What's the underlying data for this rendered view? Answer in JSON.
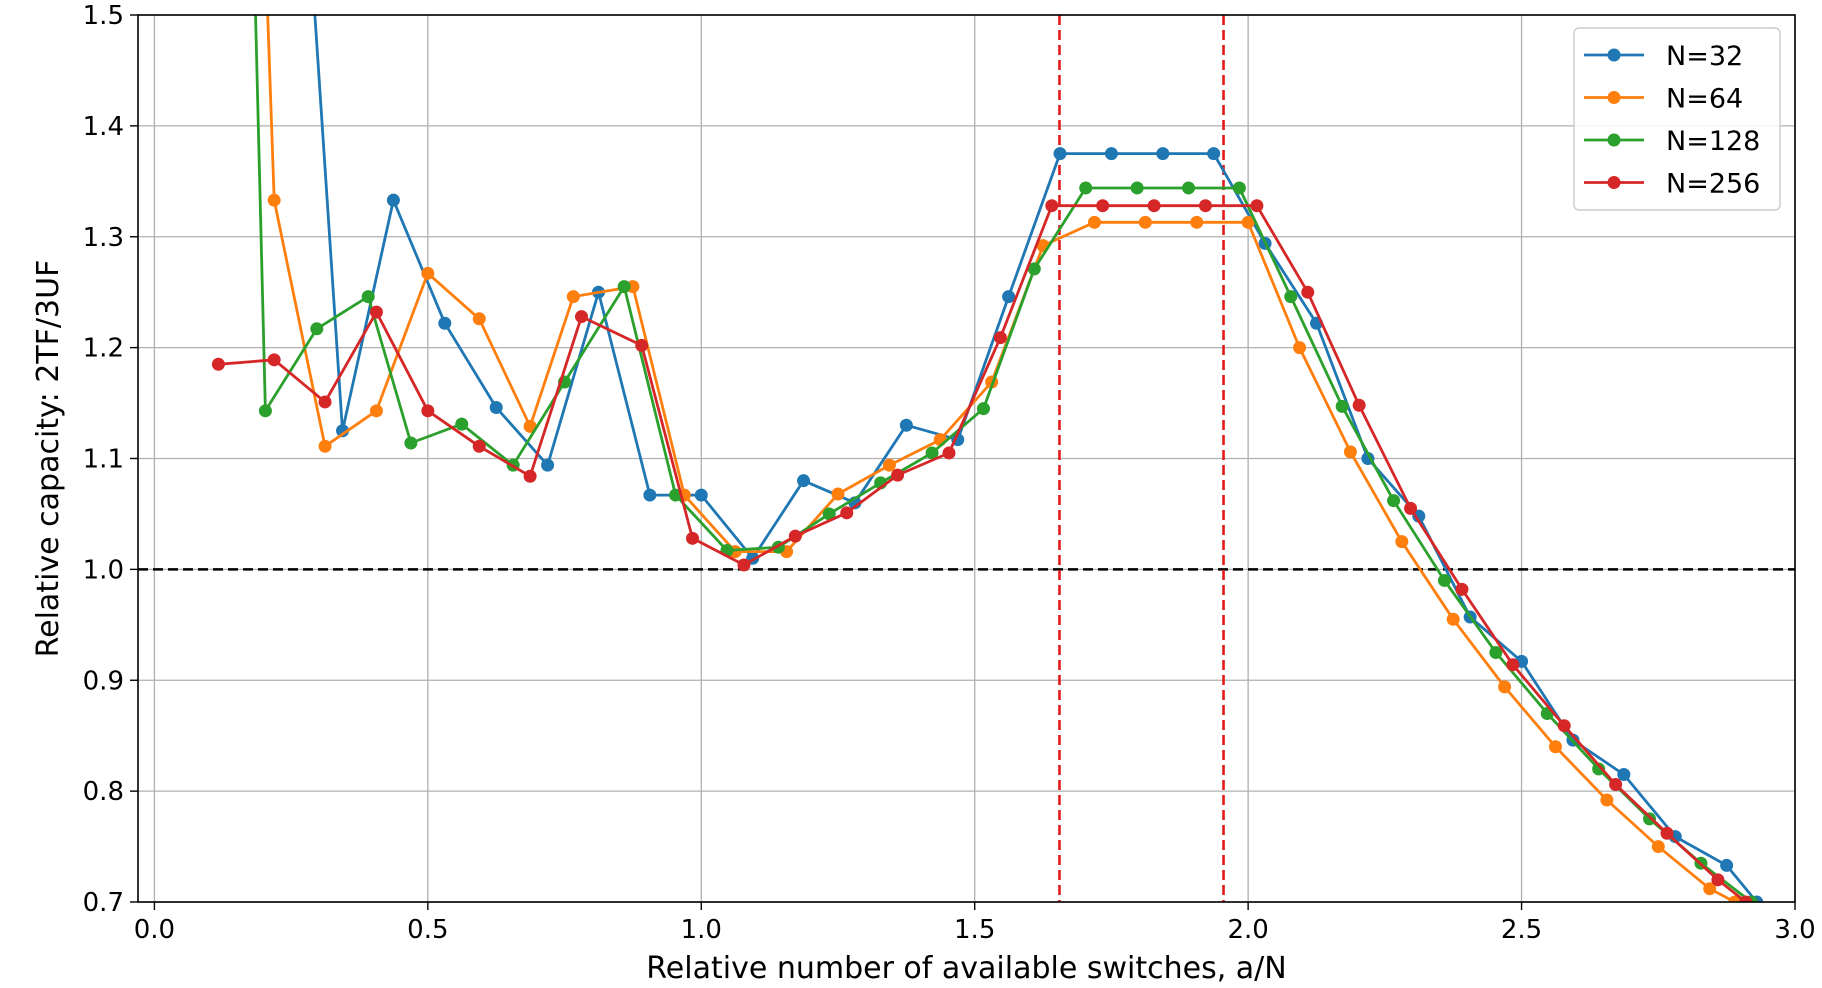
{
  "chart_data": {
    "type": "line",
    "title": "",
    "xlabel": "Relative number of available switches, a/N",
    "ylabel": "Relative capacity: 2TF/3UF",
    "xlim": [
      -0.03,
      3.0
    ],
    "ylim": [
      0.7,
      1.5
    ],
    "xticks": [
      0.0,
      0.5,
      1.0,
      1.5,
      2.0,
      2.5,
      3.0
    ],
    "xtick_labels": [
      "0.0",
      "0.5",
      "1.0",
      "1.5",
      "2.0",
      "2.5",
      "3.0"
    ],
    "yticks": [
      0.7,
      0.8,
      0.9,
      1.0,
      1.1,
      1.2,
      1.3,
      1.4,
      1.5
    ],
    "ytick_labels": [
      "0.7",
      "0.8",
      "0.9",
      "1.0",
      "1.1",
      "1.2",
      "1.3",
      "1.4",
      "1.5"
    ],
    "grid": true,
    "legend_position": "top-right",
    "reference_lines": [
      {
        "orientation": "horizontal",
        "value": 1.0,
        "color": "#000000",
        "style": "dashed"
      },
      {
        "orientation": "vertical",
        "value": 1.655,
        "color": "#e31a1c",
        "style": "dashed"
      },
      {
        "orientation": "vertical",
        "value": 1.955,
        "color": "#e31a1c",
        "style": "dashed"
      }
    ],
    "series": [
      {
        "name": "N=32",
        "color": "#1f77b4",
        "x": [
          0.28,
          0.344,
          0.437,
          0.531,
          0.625,
          0.719,
          0.812,
          0.906,
          1.0,
          1.094,
          1.187,
          1.281,
          1.375,
          1.469,
          1.562,
          1.656,
          1.75,
          1.844,
          1.937,
          2.031,
          2.125,
          2.219,
          2.312,
          2.406,
          2.5,
          2.594,
          2.687,
          2.781,
          2.875,
          2.93
        ],
        "y": [
          1.6,
          1.125,
          1.333,
          1.222,
          1.146,
          1.094,
          1.25,
          1.067,
          1.067,
          1.01,
          1.08,
          1.06,
          1.13,
          1.117,
          1.246,
          1.375,
          1.375,
          1.375,
          1.375,
          1.294,
          1.222,
          1.1,
          1.048,
          0.957,
          0.917,
          0.846,
          0.815,
          0.759,
          0.733,
          0.7
        ]
      },
      {
        "name": "N=64",
        "color": "#ff7f0e",
        "x": [
          0.2,
          0.219,
          0.312,
          0.406,
          0.5,
          0.594,
          0.687,
          0.766,
          0.875,
          0.969,
          1.062,
          1.156,
          1.25,
          1.344,
          1.437,
          1.531,
          1.625,
          1.719,
          1.812,
          1.906,
          2.0,
          2.094,
          2.187,
          2.281,
          2.375,
          2.469,
          2.562,
          2.656,
          2.75,
          2.844,
          2.89
        ],
        "y": [
          1.6,
          1.333,
          1.111,
          1.143,
          1.267,
          1.226,
          1.129,
          1.246,
          1.255,
          1.067,
          1.016,
          1.016,
          1.068,
          1.094,
          1.117,
          1.169,
          1.292,
          1.313,
          1.313,
          1.313,
          1.313,
          1.2,
          1.106,
          1.025,
          0.955,
          0.894,
          0.84,
          0.792,
          0.75,
          0.712,
          0.7
        ]
      },
      {
        "name": "N=128",
        "color": "#2ca02c",
        "x": [
          0.18,
          0.203,
          0.297,
          0.391,
          0.469,
          0.562,
          0.656,
          0.75,
          0.859,
          0.953,
          1.047,
          1.141,
          1.234,
          1.328,
          1.422,
          1.516,
          1.609,
          1.703,
          1.797,
          1.891,
          1.984,
          2.078,
          2.172,
          2.266,
          2.359,
          2.453,
          2.547,
          2.641,
          2.734,
          2.828,
          2.92
        ],
        "y": [
          1.6,
          1.143,
          1.217,
          1.246,
          1.114,
          1.131,
          1.094,
          1.169,
          1.255,
          1.067,
          1.017,
          1.02,
          1.05,
          1.078,
          1.105,
          1.145,
          1.271,
          1.344,
          1.344,
          1.344,
          1.344,
          1.246,
          1.147,
          1.062,
          0.99,
          0.925,
          0.87,
          0.82,
          0.775,
          0.735,
          0.7
        ]
      },
      {
        "name": "N=256",
        "color": "#d62728",
        "x": [
          0.117,
          0.219,
          0.312,
          0.406,
          0.5,
          0.594,
          0.687,
          0.781,
          0.891,
          0.984,
          1.078,
          1.172,
          1.266,
          1.359,
          1.453,
          1.547,
          1.641,
          1.734,
          1.828,
          1.922,
          2.016,
          2.109,
          2.203,
          2.297,
          2.391,
          2.484,
          2.578,
          2.672,
          2.766,
          2.859,
          2.91
        ],
        "y": [
          1.185,
          1.189,
          1.151,
          1.232,
          1.143,
          1.111,
          1.084,
          1.228,
          1.202,
          1.028,
          1.004,
          1.03,
          1.051,
          1.085,
          1.105,
          1.209,
          1.328,
          1.328,
          1.328,
          1.328,
          1.328,
          1.25,
          1.148,
          1.055,
          0.982,
          0.914,
          0.859,
          0.806,
          0.762,
          0.72,
          0.7
        ]
      }
    ]
  }
}
